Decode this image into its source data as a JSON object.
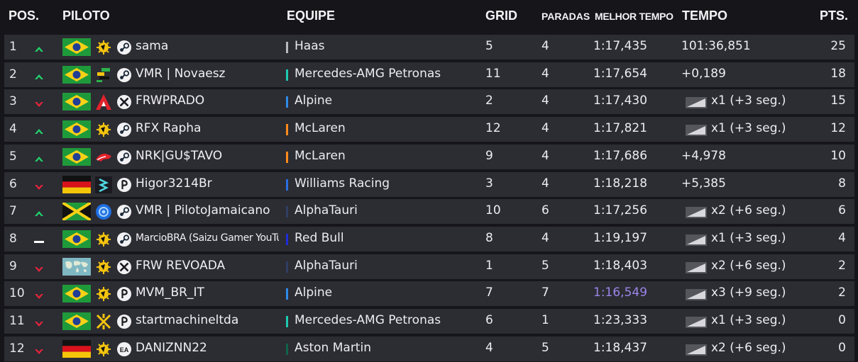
{
  "headers": {
    "pos": "POS.",
    "driver": "PILOTO",
    "team": "EQUIPE",
    "grid": "GRID",
    "stops": "PARADAS",
    "best": "MELHOR TEMPO",
    "time": "TEMPO",
    "pts": "PTS."
  },
  "colors": {
    "up": "#22d16a",
    "down": "#e0253a",
    "same": "#ffffff",
    "fastest_lap": "#9b86e8"
  },
  "rows": [
    {
      "pos": "1",
      "change": "up",
      "flag": "brazil",
      "team_logo": "sun-logo-icon",
      "platform": "steam-icon",
      "driver": "sama",
      "team": "Haas",
      "team_color": "#b9b9c0",
      "grid": "5",
      "stops": "4",
      "best": "1:17,435",
      "time": "101:36,851",
      "penalty": "",
      "pts": "25"
    },
    {
      "pos": "2",
      "change": "up",
      "flag": "brazil",
      "team_logo": "pixel-logo-icon",
      "platform": "steam-icon",
      "driver": "VMR | Novaesz",
      "team": "Mercedes-AMG Petronas",
      "team_color": "#1ec8b0",
      "grid": "11",
      "stops": "4",
      "best": "1:17,654",
      "time": "+0,189",
      "penalty": "",
      "pts": "18"
    },
    {
      "pos": "3",
      "change": "down",
      "flag": "brazil",
      "team_logo": "a-logo-icon",
      "platform": "xbox-icon",
      "driver": "FRWPRADO",
      "team": "Alpine",
      "team_color": "#2f8ce8",
      "grid": "2",
      "stops": "4",
      "best": "1:17,430",
      "time": "x1 (+3 seg.)",
      "penalty": "lapped",
      "pts": "15"
    },
    {
      "pos": "4",
      "change": "up",
      "flag": "brazil",
      "team_logo": "sun-logo-icon",
      "platform": "steam-icon",
      "driver": "RFX Rapha",
      "team": "McLaren",
      "team_color": "#ff8a1c",
      "grid": "12",
      "stops": "4",
      "best": "1:17,821",
      "time": "x1 (+3 seg.)",
      "penalty": "lapped",
      "pts": "12"
    },
    {
      "pos": "5",
      "change": "up",
      "flag": "brazil",
      "team_logo": "car-logo-icon",
      "platform": "steam-icon",
      "driver": "NRK|GU$TAVO",
      "team": "McLaren",
      "team_color": "#ff8a1c",
      "grid": "9",
      "stops": "4",
      "best": "1:17,686",
      "time": "+4,978",
      "penalty": "",
      "pts": "10"
    },
    {
      "pos": "6",
      "change": "down",
      "flag": "germany",
      "team_logo": "s-logo-icon",
      "platform": "playstation-icon",
      "driver": "Higor3214Br",
      "team": "Williams Racing",
      "team_color": "#2a6fe0",
      "grid": "3",
      "stops": "4",
      "best": "1:18,218",
      "time": "+5,385",
      "penalty": "",
      "pts": "8"
    },
    {
      "pos": "7",
      "change": "up",
      "flag": "jamaica",
      "team_logo": "blue-ring-logo-icon",
      "platform": "steam-icon",
      "driver": "VMR | PilotoJamaicano",
      "team": "AlphaTauri",
      "team_color": "#2f3f64",
      "grid": "10",
      "stops": "6",
      "best": "1:17,256",
      "time": "x2 (+6 seg.)",
      "penalty": "lapped",
      "pts": "6"
    },
    {
      "pos": "8",
      "change": "same",
      "flag": "brazil",
      "team_logo": "sun-logo-icon",
      "platform": "steam-icon",
      "driver": "MarcioBRA (Saizu Gamer YouTu",
      "team": "Red Bull",
      "team_color": "#1d2fd8",
      "grid": "8",
      "stops": "4",
      "best": "1:19,197",
      "time": "x1 (+3 seg.)",
      "penalty": "lapped",
      "pts": "4"
    },
    {
      "pos": "9",
      "change": "down",
      "flag": "world",
      "team_logo": "sun-logo-icon",
      "platform": "xbox-icon",
      "driver": "FRW REVOADA",
      "team": "AlphaTauri",
      "team_color": "#2f3f64",
      "grid": "1",
      "stops": "5",
      "best": "1:18,403",
      "time": "x2 (+6 seg.)",
      "penalty": "lapped",
      "pts": "2"
    },
    {
      "pos": "10",
      "change": "down",
      "flag": "brazil",
      "team_logo": "sun-logo-icon",
      "platform": "playstation-icon",
      "driver": "MVM_BR_IT",
      "team": "Alpine",
      "team_color": "#2f8ce8",
      "grid": "7",
      "stops": "7",
      "best": "1:16,549",
      "best_fastest": true,
      "time": "x3 (+9 seg.)",
      "penalty": "lapped",
      "pts": "2"
    },
    {
      "pos": "11",
      "change": "down",
      "flag": "brazil",
      "team_logo": "cross-logo-icon",
      "platform": "playstation-icon",
      "driver": "startmachineltda",
      "team": "Mercedes-AMG Petronas",
      "team_color": "#1ec8b0",
      "grid": "6",
      "stops": "1",
      "best": "1:23,333",
      "time": "x1 (+3 seg.)",
      "penalty": "lapped",
      "pts": "0"
    },
    {
      "pos": "12",
      "change": "down",
      "flag": "germany",
      "team_logo": "sun-logo-icon",
      "platform": "ea-icon",
      "driver": "DANIZNN22",
      "team": "Aston Martin",
      "team_color": "#12634a",
      "grid": "4",
      "stops": "5",
      "best": "1:18,437",
      "time": "x2 (+6 seg.)",
      "penalty": "lapped",
      "pts": "0"
    }
  ]
}
